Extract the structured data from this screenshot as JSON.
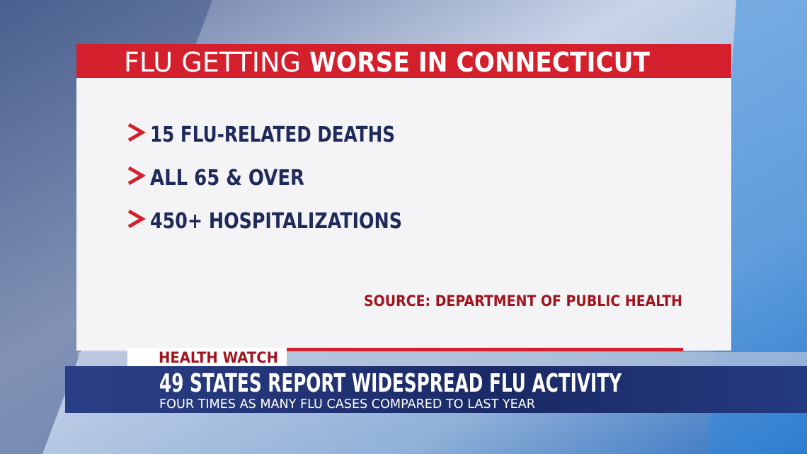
{
  "header": {
    "title_regular": "FLU GETTING",
    "title_bold": "WORSE IN CONNECTICUT"
  },
  "bullets": [
    "15 FLU-RELATED DEATHS",
    "ALL 65 & OVER",
    "450+ HOSPITALIZATIONS"
  ],
  "source": "SOURCE: DEPARTMENT OF PUBLIC HEALTH",
  "lower_third": {
    "tag": "HEALTH WATCH",
    "headline": "49 STATES REPORT WIDESPREAD FLU ACTIVITY",
    "subhead": "FOUR TIMES AS MANY FLU CASES COMPARED TO LAST YEAR"
  }
}
